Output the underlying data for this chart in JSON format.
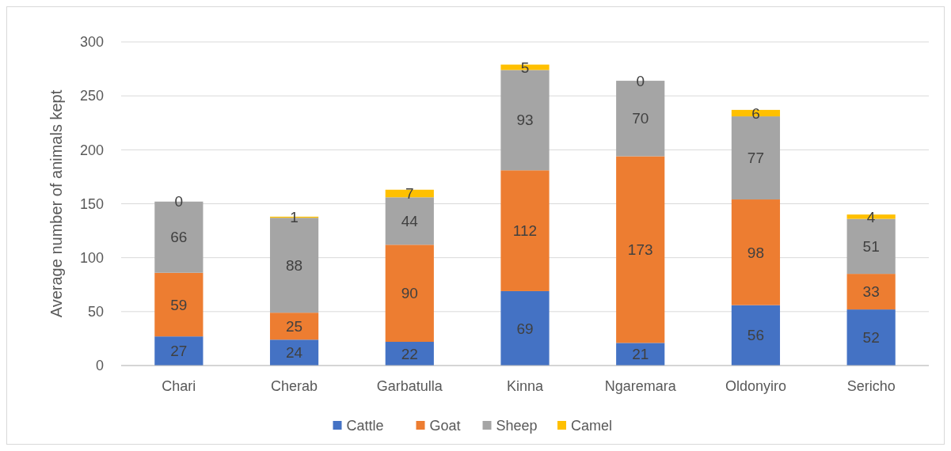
{
  "chart_data": {
    "type": "bar",
    "stacked": true,
    "ylabel": "Average number of animals kept",
    "categories": [
      "Chari",
      "Cherab",
      "Garbatulla",
      "Kinna",
      "Ngaremara",
      "Oldonyiro",
      "Sericho"
    ],
    "series": [
      {
        "name": "Cattle",
        "color": "#4472c4",
        "values": [
          27,
          24,
          22,
          69,
          21,
          56,
          52
        ]
      },
      {
        "name": "Goat",
        "color": "#ed7d31",
        "values": [
          59,
          25,
          90,
          112,
          173,
          98,
          33
        ]
      },
      {
        "name": "Sheep",
        "color": "#a5a5a5",
        "values": [
          66,
          88,
          44,
          93,
          70,
          77,
          51
        ]
      },
      {
        "name": "Camel",
        "color": "#ffc000",
        "values": [
          0,
          1,
          7,
          5,
          0,
          6,
          4
        ]
      }
    ],
    "ylim": [
      0,
      300
    ],
    "yticks": [
      0,
      50,
      100,
      150,
      200,
      250,
      300
    ],
    "grid": "y",
    "legend": "bottom",
    "data_labels": true
  }
}
